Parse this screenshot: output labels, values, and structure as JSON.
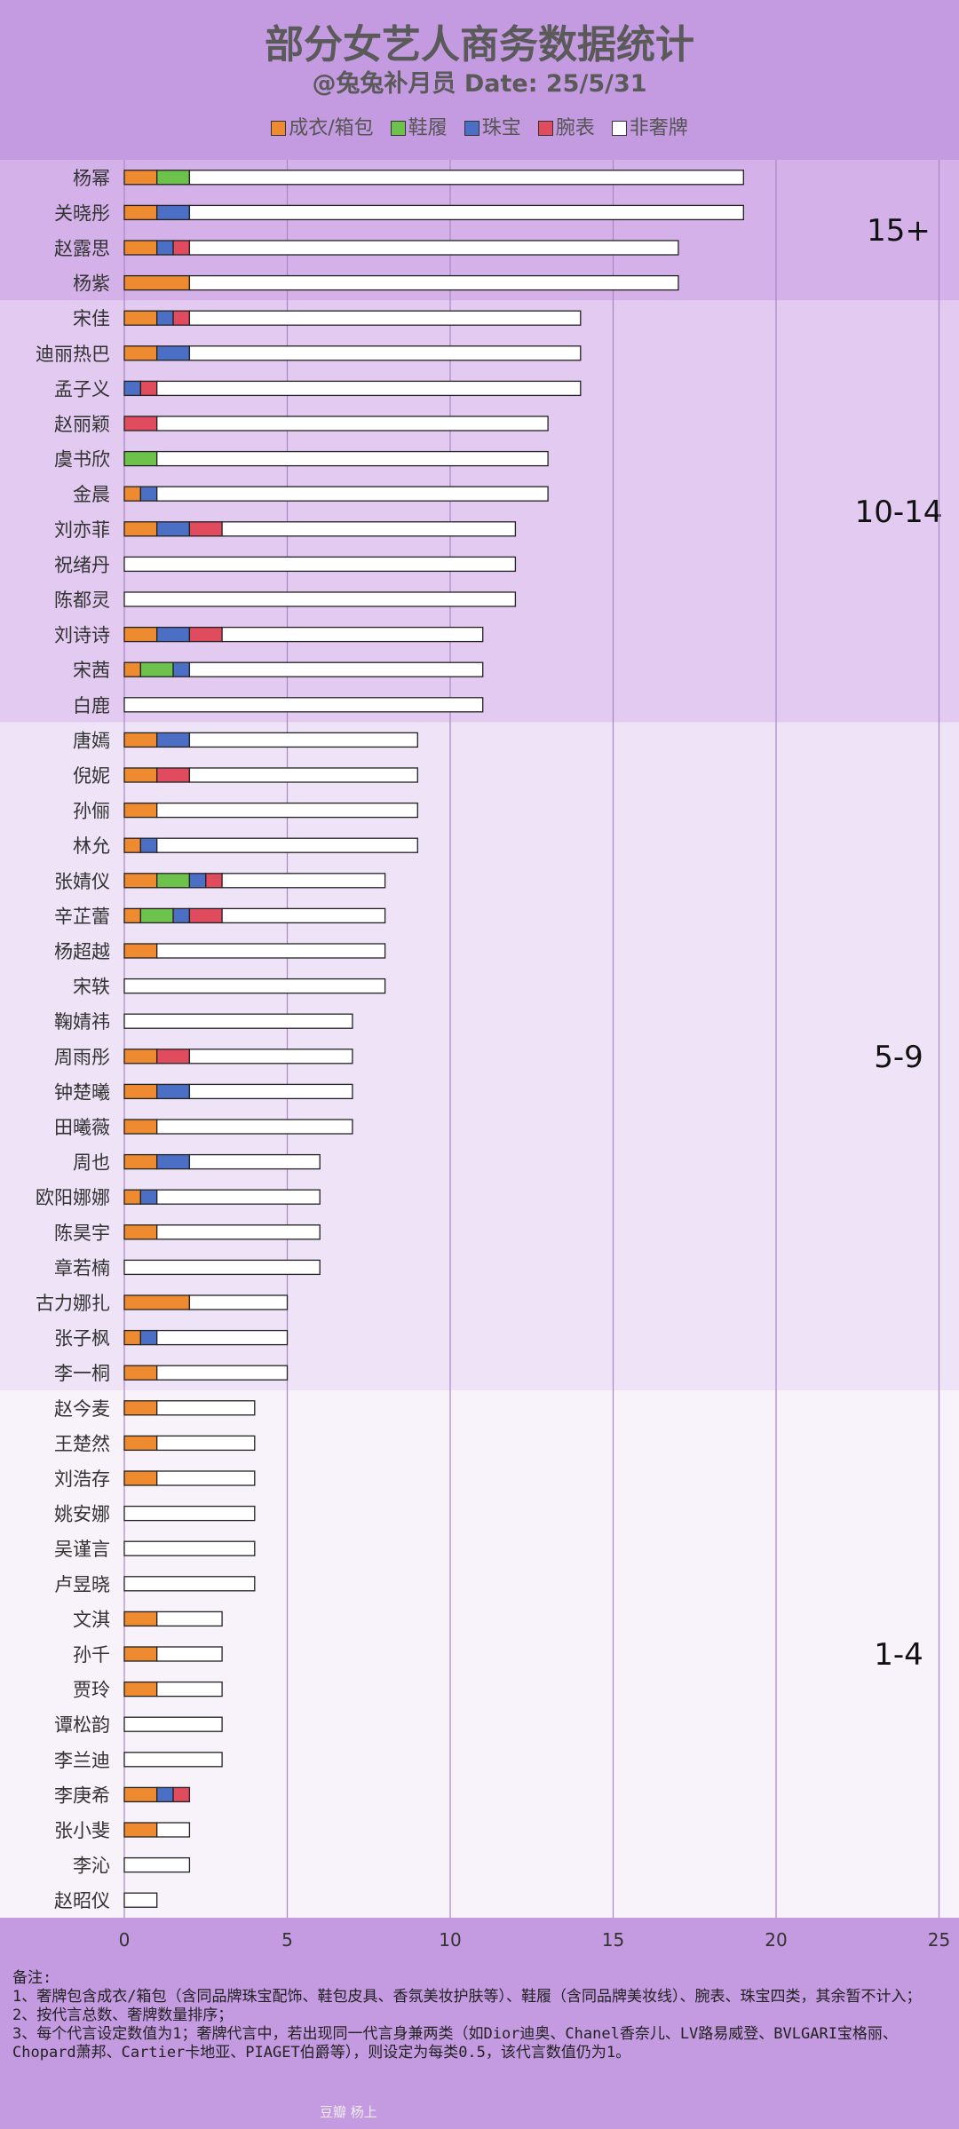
{
  "title": "部分女艺人商务数据统计",
  "subtitle": "@兔兔补月员  Date: 25/5/31",
  "legend": [
    {
      "label": "成衣/箱包",
      "color": "#ee8a2f"
    },
    {
      "label": "鞋履",
      "color": "#6cc24a"
    },
    {
      "label": "珠宝",
      "color": "#4a6fc4"
    },
    {
      "label": "腕表",
      "color": "#e04b5e"
    },
    {
      "label": "非奢牌",
      "color": "#ffffff"
    }
  ],
  "chart_data": {
    "type": "bar",
    "orientation": "horizontal",
    "stacked": true,
    "xlim": [
      0,
      25
    ],
    "x_ticks": [
      "0",
      "5",
      "10",
      "15",
      "20",
      "25"
    ],
    "grid": true,
    "legend_placement": "top",
    "series_names": [
      "成衣/箱包",
      "鞋履",
      "珠宝",
      "腕表",
      "非奢牌"
    ],
    "groups": [
      {
        "label": "15+",
        "color": "#d4b1e8",
        "count": 4
      },
      {
        "label": "10-14",
        "color": "#e2caf0",
        "count": 12
      },
      {
        "label": "5-9",
        "color": "#efe3f7",
        "count": 19
      },
      {
        "label": "1-4",
        "color": "#f8f2fb",
        "count": 15
      }
    ],
    "rows": [
      {
        "name": "杨幂",
        "values": [
          1,
          1,
          0,
          0,
          17
        ]
      },
      {
        "name": "关晓彤",
        "values": [
          1,
          0,
          1,
          0,
          17
        ]
      },
      {
        "name": "赵露思",
        "values": [
          1,
          0,
          0.5,
          0.5,
          15
        ]
      },
      {
        "name": "杨紫",
        "values": [
          2,
          0,
          0,
          0,
          15
        ]
      },
      {
        "name": "宋佳",
        "values": [
          1,
          0,
          0.5,
          0.5,
          12
        ]
      },
      {
        "name": "迪丽热巴",
        "values": [
          1,
          0,
          1,
          0,
          12
        ]
      },
      {
        "name": "孟子义",
        "values": [
          0,
          0,
          0.5,
          0.5,
          13
        ]
      },
      {
        "name": "赵丽颖",
        "values": [
          0,
          0,
          0,
          1,
          12
        ]
      },
      {
        "name": "虞书欣",
        "values": [
          0,
          1,
          0,
          0,
          12
        ]
      },
      {
        "name": "金晨",
        "values": [
          0.5,
          0,
          0.5,
          0,
          12
        ]
      },
      {
        "name": "刘亦菲",
        "values": [
          1,
          0,
          1,
          1,
          9
        ]
      },
      {
        "name": "祝绪丹",
        "values": [
          0,
          0,
          0,
          0,
          12
        ]
      },
      {
        "name": "陈都灵",
        "values": [
          0,
          0,
          0,
          0,
          12
        ]
      },
      {
        "name": "刘诗诗",
        "values": [
          1,
          0,
          1,
          1,
          8
        ]
      },
      {
        "name": "宋茜",
        "values": [
          0.5,
          1,
          0.5,
          0,
          9
        ]
      },
      {
        "name": "白鹿",
        "values": [
          0,
          0,
          0,
          0,
          11
        ]
      },
      {
        "name": "唐嫣",
        "values": [
          1,
          0,
          1,
          0,
          7
        ]
      },
      {
        "name": "倪妮",
        "values": [
          1,
          0,
          0,
          1,
          7
        ]
      },
      {
        "name": "孙俪",
        "values": [
          1,
          0,
          0,
          0,
          8
        ]
      },
      {
        "name": "林允",
        "values": [
          0.5,
          0,
          0.5,
          0,
          8
        ]
      },
      {
        "name": "张婧仪",
        "values": [
          1,
          1,
          0.5,
          0.5,
          5
        ]
      },
      {
        "name": "辛芷蕾",
        "values": [
          0.5,
          1,
          0.5,
          1,
          5
        ]
      },
      {
        "name": "杨超越",
        "values": [
          1,
          0,
          0,
          0,
          7
        ]
      },
      {
        "name": "宋轶",
        "values": [
          0,
          0,
          0,
          0,
          8
        ]
      },
      {
        "name": "鞠婧祎",
        "values": [
          0,
          0,
          0,
          0,
          7
        ]
      },
      {
        "name": "周雨彤",
        "values": [
          1,
          0,
          0,
          1,
          5
        ]
      },
      {
        "name": "钟楚曦",
        "values": [
          1,
          0,
          1,
          0,
          5
        ]
      },
      {
        "name": "田曦薇",
        "values": [
          1,
          0,
          0,
          0,
          6
        ]
      },
      {
        "name": "周也",
        "values": [
          1,
          0,
          1,
          0,
          4
        ]
      },
      {
        "name": "欧阳娜娜",
        "values": [
          0.5,
          0,
          0.5,
          0,
          5
        ]
      },
      {
        "name": "陈昊宇",
        "values": [
          1,
          0,
          0,
          0,
          5
        ]
      },
      {
        "name": "章若楠",
        "values": [
          0,
          0,
          0,
          0,
          6
        ]
      },
      {
        "name": "古力娜扎",
        "values": [
          2,
          0,
          0,
          0,
          3
        ]
      },
      {
        "name": "张子枫",
        "values": [
          0.5,
          0,
          0.5,
          0,
          4
        ]
      },
      {
        "name": "李一桐",
        "values": [
          1,
          0,
          0,
          0,
          4
        ]
      },
      {
        "name": "赵今麦",
        "values": [
          1,
          0,
          0,
          0,
          3
        ]
      },
      {
        "name": "王楚然",
        "values": [
          1,
          0,
          0,
          0,
          3
        ]
      },
      {
        "name": "刘浩存",
        "values": [
          1,
          0,
          0,
          0,
          3
        ]
      },
      {
        "name": "姚安娜",
        "values": [
          0,
          0,
          0,
          0,
          4
        ]
      },
      {
        "name": "吴谨言",
        "values": [
          0,
          0,
          0,
          0,
          4
        ]
      },
      {
        "name": "卢昱晓",
        "values": [
          0,
          0,
          0,
          0,
          4
        ]
      },
      {
        "name": "文淇",
        "values": [
          1,
          0,
          0,
          0,
          2
        ]
      },
      {
        "name": "孙千",
        "values": [
          1,
          0,
          0,
          0,
          2
        ]
      },
      {
        "name": "贾玲",
        "values": [
          1,
          0,
          0,
          0,
          2
        ]
      },
      {
        "name": "谭松韵",
        "values": [
          0,
          0,
          0,
          0,
          3
        ]
      },
      {
        "name": "李兰迪",
        "values": [
          0,
          0,
          0,
          0,
          3
        ]
      },
      {
        "name": "李庚希",
        "values": [
          1,
          0,
          0.5,
          0.5,
          0
        ]
      },
      {
        "name": "张小斐",
        "values": [
          1,
          0,
          0,
          0,
          1
        ]
      },
      {
        "name": "李沁",
        "values": [
          0,
          0,
          0,
          0,
          2
        ]
      },
      {
        "name": "赵昭仪",
        "values": [
          0,
          0,
          0,
          0,
          1
        ]
      }
    ]
  },
  "notes": {
    "heading": "备注:",
    "lines": [
      "1、奢牌包含成衣/箱包（含同品牌珠宝配饰、鞋包皮具、香氛美妆护肤等）、鞋履（含同品牌美妆线）、腕表、珠宝四类，其余暂不计入；",
      "2、按代言总数、奢牌数量排序；",
      "3、每个代言设定数值为1；奢牌代言中，若出现同一代言身兼两类（如Dior迪奥、Chanel香奈儿、LV路易威登、BVLGARI宝格丽、Chopard萧邦、Cartier卡地亚、PIAGET伯爵等），则设定为每类0.5，该代言数值仍为1。"
    ]
  },
  "watermark": "豆瓣  杨上"
}
